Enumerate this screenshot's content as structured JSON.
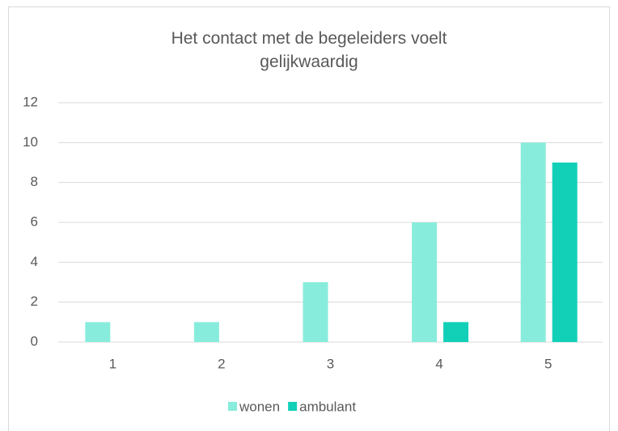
{
  "chart_data": {
    "type": "bar",
    "title": "Het contact met de begeleiders voelt gelijkwaardig",
    "categories": [
      "1",
      "2",
      "3",
      "4",
      "5"
    ],
    "series": [
      {
        "name": "wonen",
        "color": "#88ecdc",
        "values": [
          1,
          1,
          3,
          6,
          10
        ]
      },
      {
        "name": "ambulant",
        "color": "#12d0b8",
        "values": [
          0,
          0,
          0,
          1,
          9
        ]
      }
    ],
    "ylim": [
      0,
      12
    ],
    "yticks": [
      0,
      2,
      4,
      6,
      8,
      10,
      12
    ],
    "grid": true,
    "legend": "bottom"
  }
}
